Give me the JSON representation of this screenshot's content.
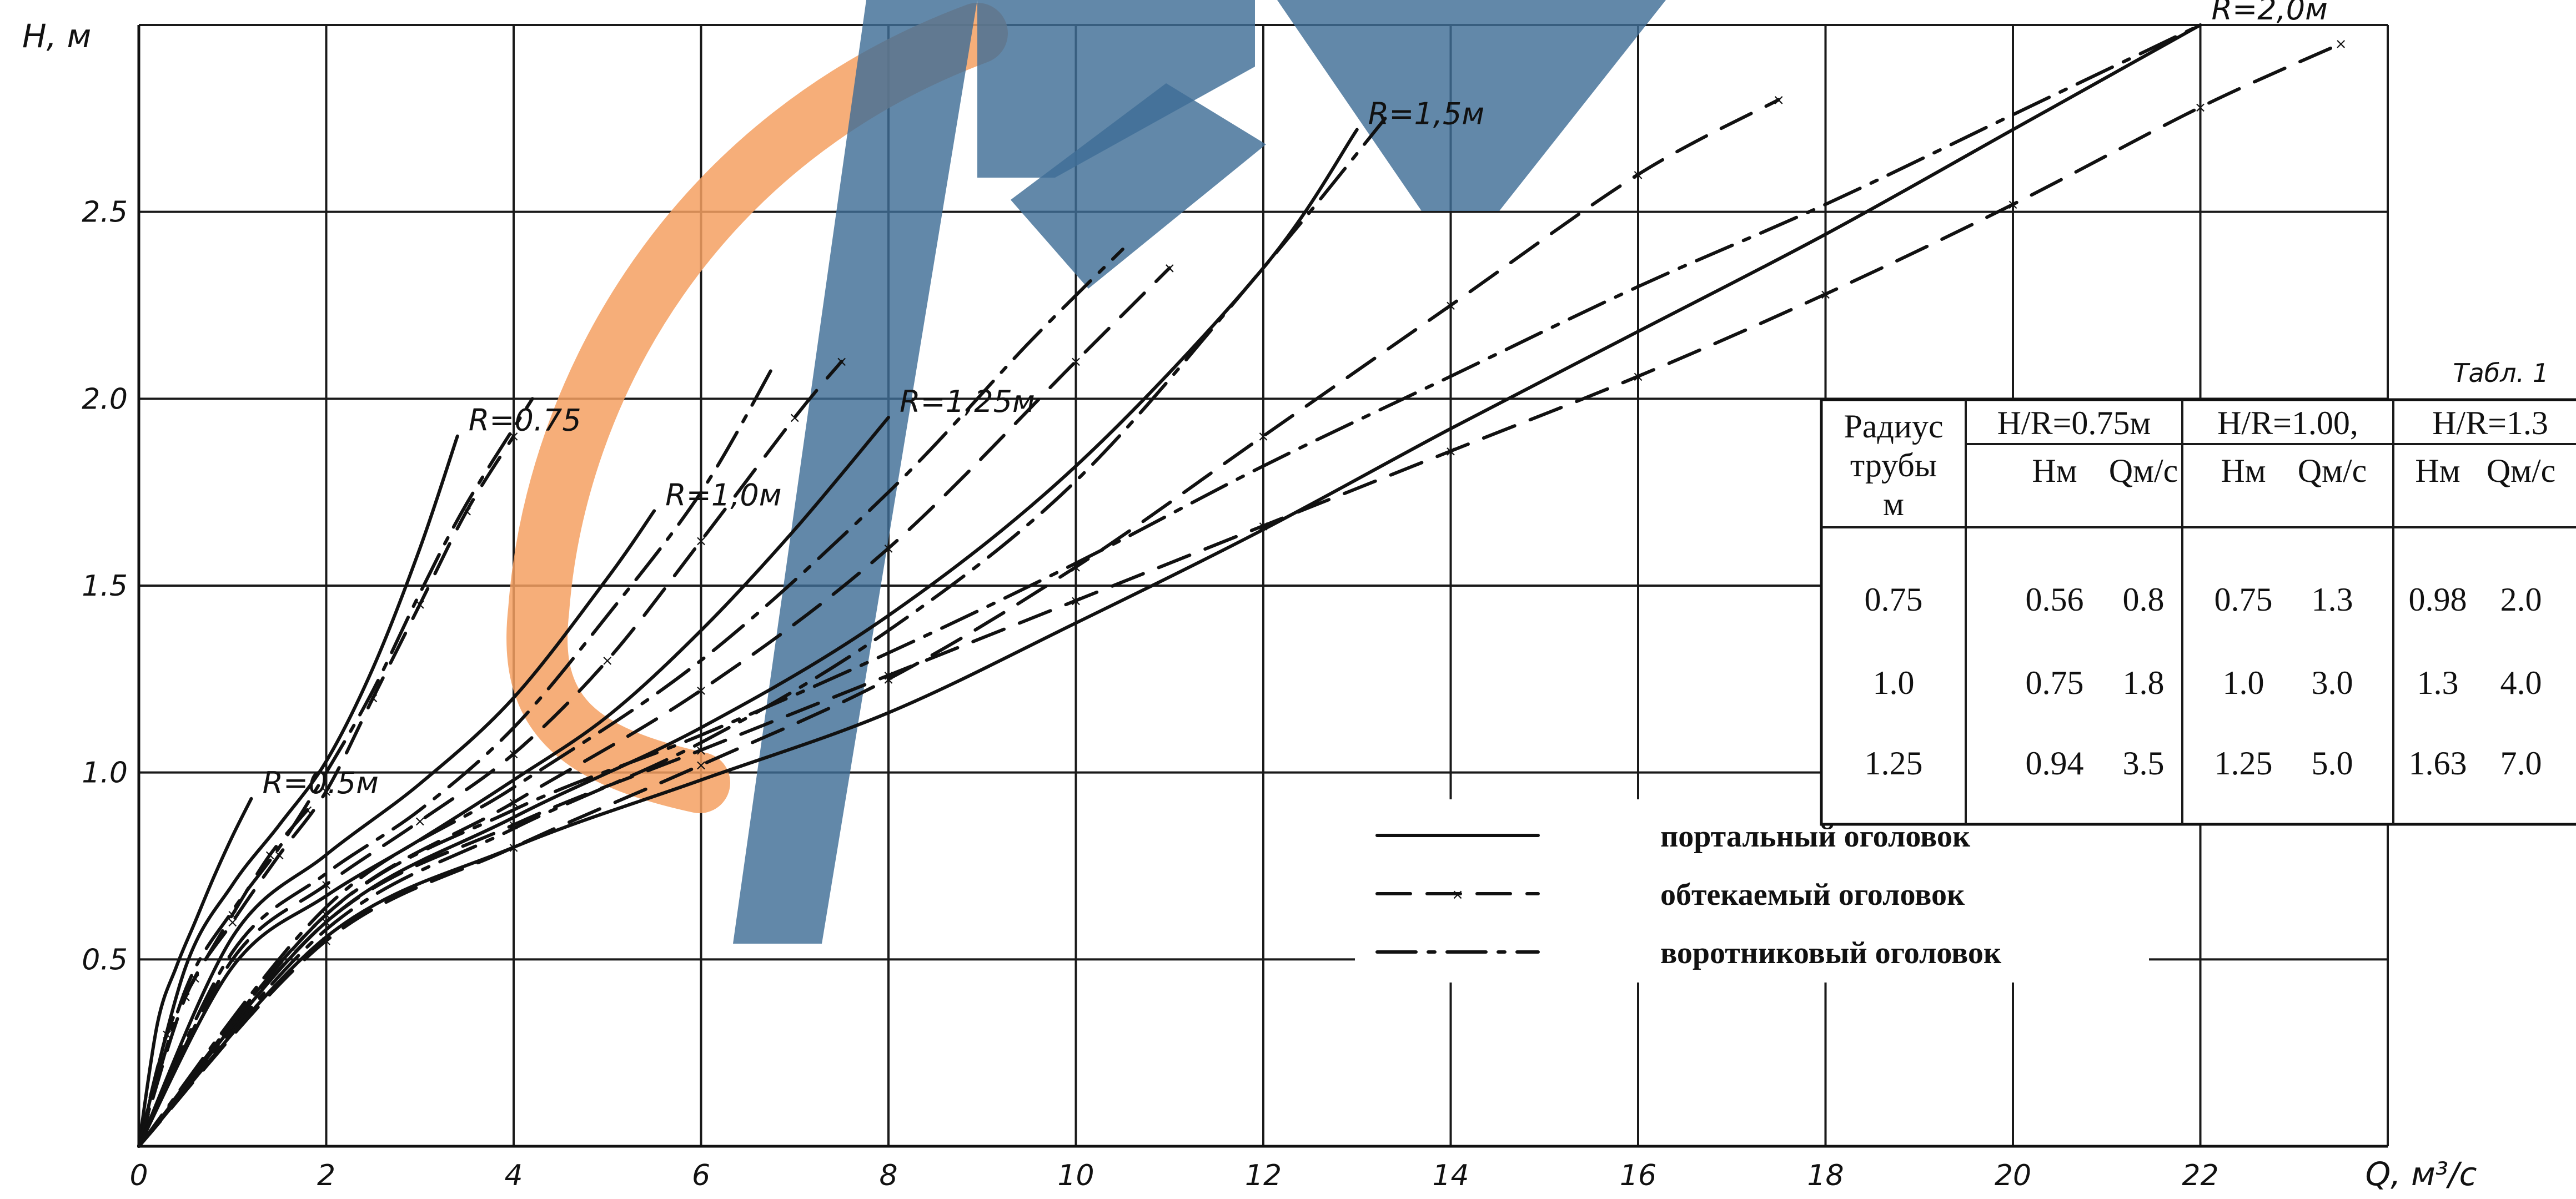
{
  "chart_data": {
    "type": "line",
    "xlabel": "Q, м³/с",
    "ylabel": "H, м",
    "xlim": [
      0,
      24
    ],
    "ylim": [
      0,
      3.0
    ],
    "x_ticks": [
      "0",
      "2",
      "4",
      "6",
      "8",
      "10",
      "12",
      "14",
      "16",
      "18",
      "20",
      "22"
    ],
    "y_ticks": [
      "0.5",
      "1.0",
      "1.5",
      "2.0",
      "2.5"
    ],
    "grid": true,
    "series": [
      {
        "name": "R=0.5м",
        "style": "solid",
        "label": "R=0.5м",
        "x": [
          0,
          0.2,
          0.4,
          0.6,
          0.8,
          1.0,
          1.2
        ],
        "y": [
          0,
          0.33,
          0.48,
          0.6,
          0.72,
          0.83,
          0.93
        ]
      },
      {
        "name": "R=0.5м обтекаемый",
        "style": "dash-x",
        "x": [
          0,
          0.3,
          0.6,
          1.0,
          1.4,
          1.8
        ],
        "y": [
          0,
          0.3,
          0.45,
          0.62,
          0.78,
          0.9
        ]
      },
      {
        "name": "R=0.75",
        "style": "solid",
        "label": "R=0.75",
        "x": [
          0,
          0.5,
          1.0,
          1.5,
          2.0,
          2.5,
          3.0,
          3.4
        ],
        "y": [
          0,
          0.48,
          0.7,
          0.86,
          1.03,
          1.28,
          1.6,
          1.9
        ]
      },
      {
        "name": "R=0.75 обтекаемый",
        "style": "dash-x",
        "x": [
          0,
          0.5,
          1.0,
          1.5,
          2.0,
          2.5,
          3.0,
          3.5,
          4.0
        ],
        "y": [
          0,
          0.4,
          0.6,
          0.78,
          0.95,
          1.2,
          1.45,
          1.7,
          1.9
        ]
      },
      {
        "name": "R=0.75 воротниковый",
        "style": "dash-dot",
        "x": [
          0,
          0.5,
          1.0,
          1.5,
          2.0,
          2.5,
          3.0,
          3.5,
          4.2
        ],
        "y": [
          0,
          0.42,
          0.63,
          0.8,
          1.0,
          1.22,
          1.48,
          1.72,
          2.0
        ]
      },
      {
        "name": "R=1,0м",
        "style": "solid",
        "label": "R=1,0м",
        "x": [
          0,
          1.0,
          2.0,
          3.0,
          4.0,
          5.0,
          5.5
        ],
        "y": [
          0,
          0.56,
          0.78,
          0.97,
          1.2,
          1.52,
          1.7
        ]
      },
      {
        "name": "R=1,0м обтекаемый",
        "style": "dash-x",
        "x": [
          0,
          1.0,
          2.0,
          3.0,
          4.0,
          5.0,
          6.0,
          7.0,
          7.5
        ],
        "y": [
          0,
          0.5,
          0.7,
          0.87,
          1.05,
          1.3,
          1.62,
          1.95,
          2.1
        ]
      },
      {
        "name": "R=1,0м воротниковый",
        "style": "dash-dot",
        "x": [
          0,
          1.0,
          2.0,
          3.0,
          4.0,
          5.0,
          6.0,
          6.8
        ],
        "y": [
          0,
          0.52,
          0.73,
          0.9,
          1.12,
          1.42,
          1.75,
          2.1
        ]
      },
      {
        "name": "R=1,25м",
        "style": "solid",
        "label": "R=1,25м",
        "x": [
          0,
          1.0,
          2.0,
          3.0,
          4.0,
          5.0,
          6.0,
          7.0,
          8.0
        ],
        "y": [
          0,
          0.48,
          0.67,
          0.82,
          0.98,
          1.15,
          1.38,
          1.65,
          1.95
        ]
      },
      {
        "name": "R=1,25м обтекаемый",
        "style": "dash-x",
        "x": [
          0,
          2.0,
          4.0,
          6.0,
          8.0,
          10.0,
          11.0
        ],
        "y": [
          0,
          0.62,
          0.92,
          1.22,
          1.6,
          2.1,
          2.35
        ]
      },
      {
        "name": "R=1,25м воротниковый",
        "style": "dash-dot",
        "x": [
          0,
          2.0,
          4.0,
          6.0,
          8.0,
          9.5,
          10.5
        ],
        "y": [
          0,
          0.64,
          0.96,
          1.3,
          1.75,
          2.15,
          2.4
        ]
      },
      {
        "name": "R=1,5м",
        "style": "solid",
        "label": "R=1,5м",
        "x": [
          0,
          2.0,
          4.0,
          6.0,
          8.0,
          10.0,
          12.0,
          13.0
        ],
        "y": [
          0,
          0.6,
          0.88,
          1.12,
          1.42,
          1.82,
          2.35,
          2.72
        ]
      },
      {
        "name": "R=1,5м обтекаемый",
        "style": "dash-x",
        "x": [
          0,
          2.0,
          4.0,
          6.0,
          8.0,
          10.0,
          12.0,
          14.0,
          16.0,
          17.5
        ],
        "y": [
          0,
          0.55,
          0.8,
          1.02,
          1.25,
          1.55,
          1.9,
          2.25,
          2.6,
          2.8
        ]
      },
      {
        "name": "R=1,5м воротниковый",
        "style": "dash-dot",
        "x": [
          0,
          2.0,
          4.0,
          6.0,
          8.0,
          10.0,
          12.0,
          13.3
        ],
        "y": [
          0,
          0.58,
          0.85,
          1.08,
          1.38,
          1.78,
          2.35,
          2.75
        ]
      },
      {
        "name": "R=2,0м",
        "style": "solid",
        "label": "R=2,0м",
        "x": [
          0,
          2.0,
          4.0,
          6.0,
          8.0,
          10.0,
          12.0,
          14.0,
          16.0,
          18.0,
          20.0,
          22.0
        ],
        "y": [
          0,
          0.56,
          0.8,
          0.98,
          1.16,
          1.4,
          1.65,
          1.92,
          2.18,
          2.44,
          2.72,
          3.0
        ]
      },
      {
        "name": "R=2,0м обтекаемый",
        "style": "dash-x",
        "x": [
          0,
          2.0,
          4.0,
          6.0,
          8.0,
          10.0,
          12.0,
          14.0,
          16.0,
          18.0,
          20.0,
          22.0,
          23.5
        ],
        "y": [
          0,
          0.6,
          0.86,
          1.06,
          1.26,
          1.46,
          1.66,
          1.86,
          2.06,
          2.28,
          2.52,
          2.78,
          2.95
        ]
      },
      {
        "name": "R=2,0м воротниковый",
        "style": "dash-dot",
        "x": [
          0,
          2.0,
          4.0,
          6.0,
          8.0,
          10.0,
          12.0,
          14.0,
          16.0,
          18.0,
          20.0,
          22.0
        ],
        "y": [
          0,
          0.62,
          0.9,
          1.1,
          1.32,
          1.56,
          1.82,
          2.06,
          2.3,
          2.52,
          2.76,
          3.0
        ]
      }
    ],
    "legend": [
      {
        "style": "solid",
        "label": "портальный    оголовок"
      },
      {
        "style": "dash-x",
        "label": "обтекаемый     оголовок"
      },
      {
        "style": "dash-dot",
        "label": "воротниковый     оголовок"
      }
    ],
    "table": {
      "caption": "Табл. 1",
      "col1_header": [
        "Радиус",
        "трубы",
        "м"
      ],
      "group_headers": [
        "H/R=0.75м",
        "H/R=1.00,",
        "H/R=1.3"
      ],
      "sub_headers": [
        "Нм",
        "Qм/с",
        "Нм",
        "Qм/с",
        "Нм",
        "Qм/с"
      ],
      "rows": [
        [
          "0.75",
          "0.56",
          "0.8",
          "0.75",
          "1.3",
          "0.98",
          "2.0"
        ],
        [
          "1.0",
          "0.75",
          "1.8",
          "1.0",
          "3.0",
          "1.3",
          "4.0"
        ],
        [
          "1.25",
          "0.94",
          "3.5",
          "1.25",
          "5.0",
          "1.63",
          "7.0"
        ]
      ]
    }
  }
}
